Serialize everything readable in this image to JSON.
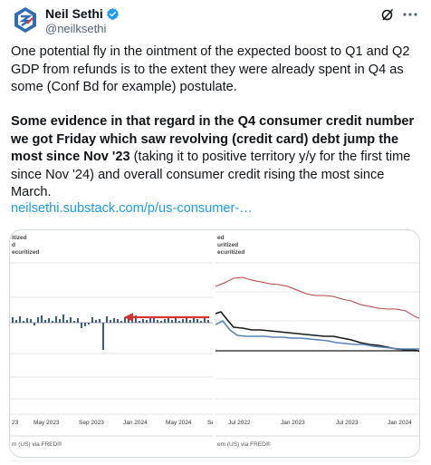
{
  "author": {
    "name": "Neil Sethi",
    "handle": "@neilksethi"
  },
  "tweet": {
    "paragraph1": "One potential fly in the ointment of the expected boost to Q1 and Q2 GDP from refunds is to the extent they were already spent in Q4 as some (Conf Bd for example) postulate.",
    "paragraph2_bold": "Some evidence in that regard in the Q4 consumer credit number we got Friday which saw revolving (credit card) debt jump the most since Nov '23",
    "paragraph2_rest": " (taking it to positive territory y/y for the first time since Nov '24) and overall consumer credit rising the most since March.",
    "link": "neilsethi.substack.com/p/us-consumer-…"
  },
  "chart_left": {
    "legend": [
      "itized",
      "d",
      "ecuritized"
    ],
    "source": "m (US) via FRED®",
    "x_ticks": [
      "23",
      "May 2023",
      "Sep 2023",
      "Jan 2024",
      "May 2024",
      "Se"
    ],
    "colors": {
      "bars": "#3a5a8c",
      "arrow": "#d9342b",
      "grid": "#dddddd"
    }
  },
  "chart_right": {
    "legend": [
      "ed",
      "uritized",
      "ecuritized"
    ],
    "source": "em (US) via FRED®",
    "x_ticks": [
      "Jul 2022",
      "Jan 2023",
      "Jul 2023",
      "Jan 2024"
    ],
    "colors": {
      "red": "#b5413e",
      "dark": "#1a1a1a",
      "blue": "#5b82b8",
      "grid": "#dddddd"
    }
  },
  "icons": {
    "avatar": "sethi-logo-icon",
    "verified": "verified-badge-icon",
    "grok": "grok-icon",
    "more": "more-icon"
  }
}
